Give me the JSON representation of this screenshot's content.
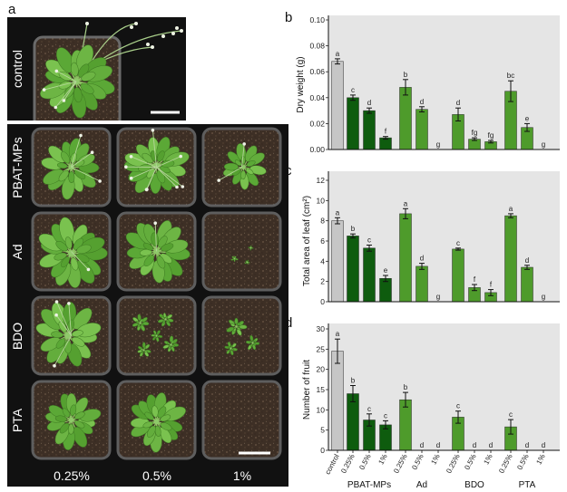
{
  "figure": {
    "panel_a": {
      "label": "a",
      "control_label": "control",
      "row_labels": [
        "PBAT-MPs",
        "Ad",
        "BDO",
        "PTA"
      ],
      "col_labels": [
        "0.25%",
        "0.5%",
        "1%"
      ]
    },
    "colors": {
      "control": "#c6c6c6",
      "PBAT-MPs": "#0e5c0e",
      "Ad": "#4e9b2b",
      "BDO": "#4e9b2b",
      "PTA": "#4e9b2b",
      "plot_background": "#e5e5e5",
      "photo_background": "#111111"
    }
  },
  "chart_data": [
    {
      "panel_label": "b",
      "type": "bar",
      "ylabel": "Dry weight (g)",
      "ylim": [
        0,
        0.1
      ],
      "yticks": [
        "0.00",
        "0.02",
        "0.04",
        "0.06",
        "0.08",
        "0.10"
      ],
      "values": [
        0.068,
        0.04,
        0.03,
        0.009,
        0.048,
        0.031,
        0.0,
        0.027,
        0.008,
        0.006,
        0.045,
        0.017,
        0.0
      ],
      "errors": [
        0.002,
        0.002,
        0.002,
        0.001,
        0.006,
        0.002,
        0,
        0.005,
        0.001,
        0.001,
        0.008,
        0.003,
        0
      ],
      "letters": [
        "a",
        "c",
        "d",
        "f",
        "b",
        "d",
        "g",
        "d",
        "fg",
        "fg",
        "bc",
        "e",
        "g"
      ]
    },
    {
      "panel_label": "c",
      "type": "bar",
      "ylabel": "Total area of leaf (cm²)",
      "ylim": [
        0,
        12
      ],
      "yticks": [
        "0",
        "2",
        "4",
        "6",
        "8",
        "10",
        "12"
      ],
      "values": [
        8.0,
        6.5,
        5.3,
        2.3,
        8.7,
        3.5,
        0,
        5.2,
        1.4,
        0.9,
        8.5,
        3.4,
        0
      ],
      "errors": [
        0.3,
        0.2,
        0.3,
        0.3,
        0.5,
        0.3,
        0,
        0.1,
        0.3,
        0.3,
        0.2,
        0.2,
        0
      ],
      "letters": [
        "a",
        "b",
        "c",
        "e",
        "a",
        "d",
        "g",
        "c",
        "f",
        "f",
        "a",
        "d",
        "g"
      ]
    },
    {
      "panel_label": "d",
      "type": "bar",
      "ylabel": "Number of fruit",
      "ylim": [
        0,
        30
      ],
      "yticks": [
        "0",
        "5",
        "10",
        "15",
        "20",
        "25",
        "30"
      ],
      "control_category": "control",
      "groups": [
        {
          "name": "PBAT-MPs",
          "levels": [
            "0.25%",
            "0.5%",
            "1%"
          ]
        },
        {
          "name": "Ad",
          "levels": [
            "0.25%",
            "0.5%",
            "1%"
          ]
        },
        {
          "name": "BDO",
          "levels": [
            "0.25%",
            "0.5%",
            "1%"
          ]
        },
        {
          "name": "PTA",
          "levels": [
            "0.25%",
            "0.5%",
            "1%"
          ]
        }
      ],
      "values": [
        24.5,
        14.0,
        7.5,
        6.3,
        12.5,
        0,
        0,
        8.2,
        0,
        0,
        5.8,
        0,
        0
      ],
      "errors": [
        3.0,
        2.0,
        1.5,
        1.0,
        1.8,
        0,
        0,
        1.5,
        0,
        0,
        1.8,
        0,
        0
      ],
      "letters": [
        "a",
        "b",
        "c",
        "c",
        "b",
        "d",
        "d",
        "c",
        "d",
        "d",
        "c",
        "d",
        "d"
      ]
    }
  ]
}
